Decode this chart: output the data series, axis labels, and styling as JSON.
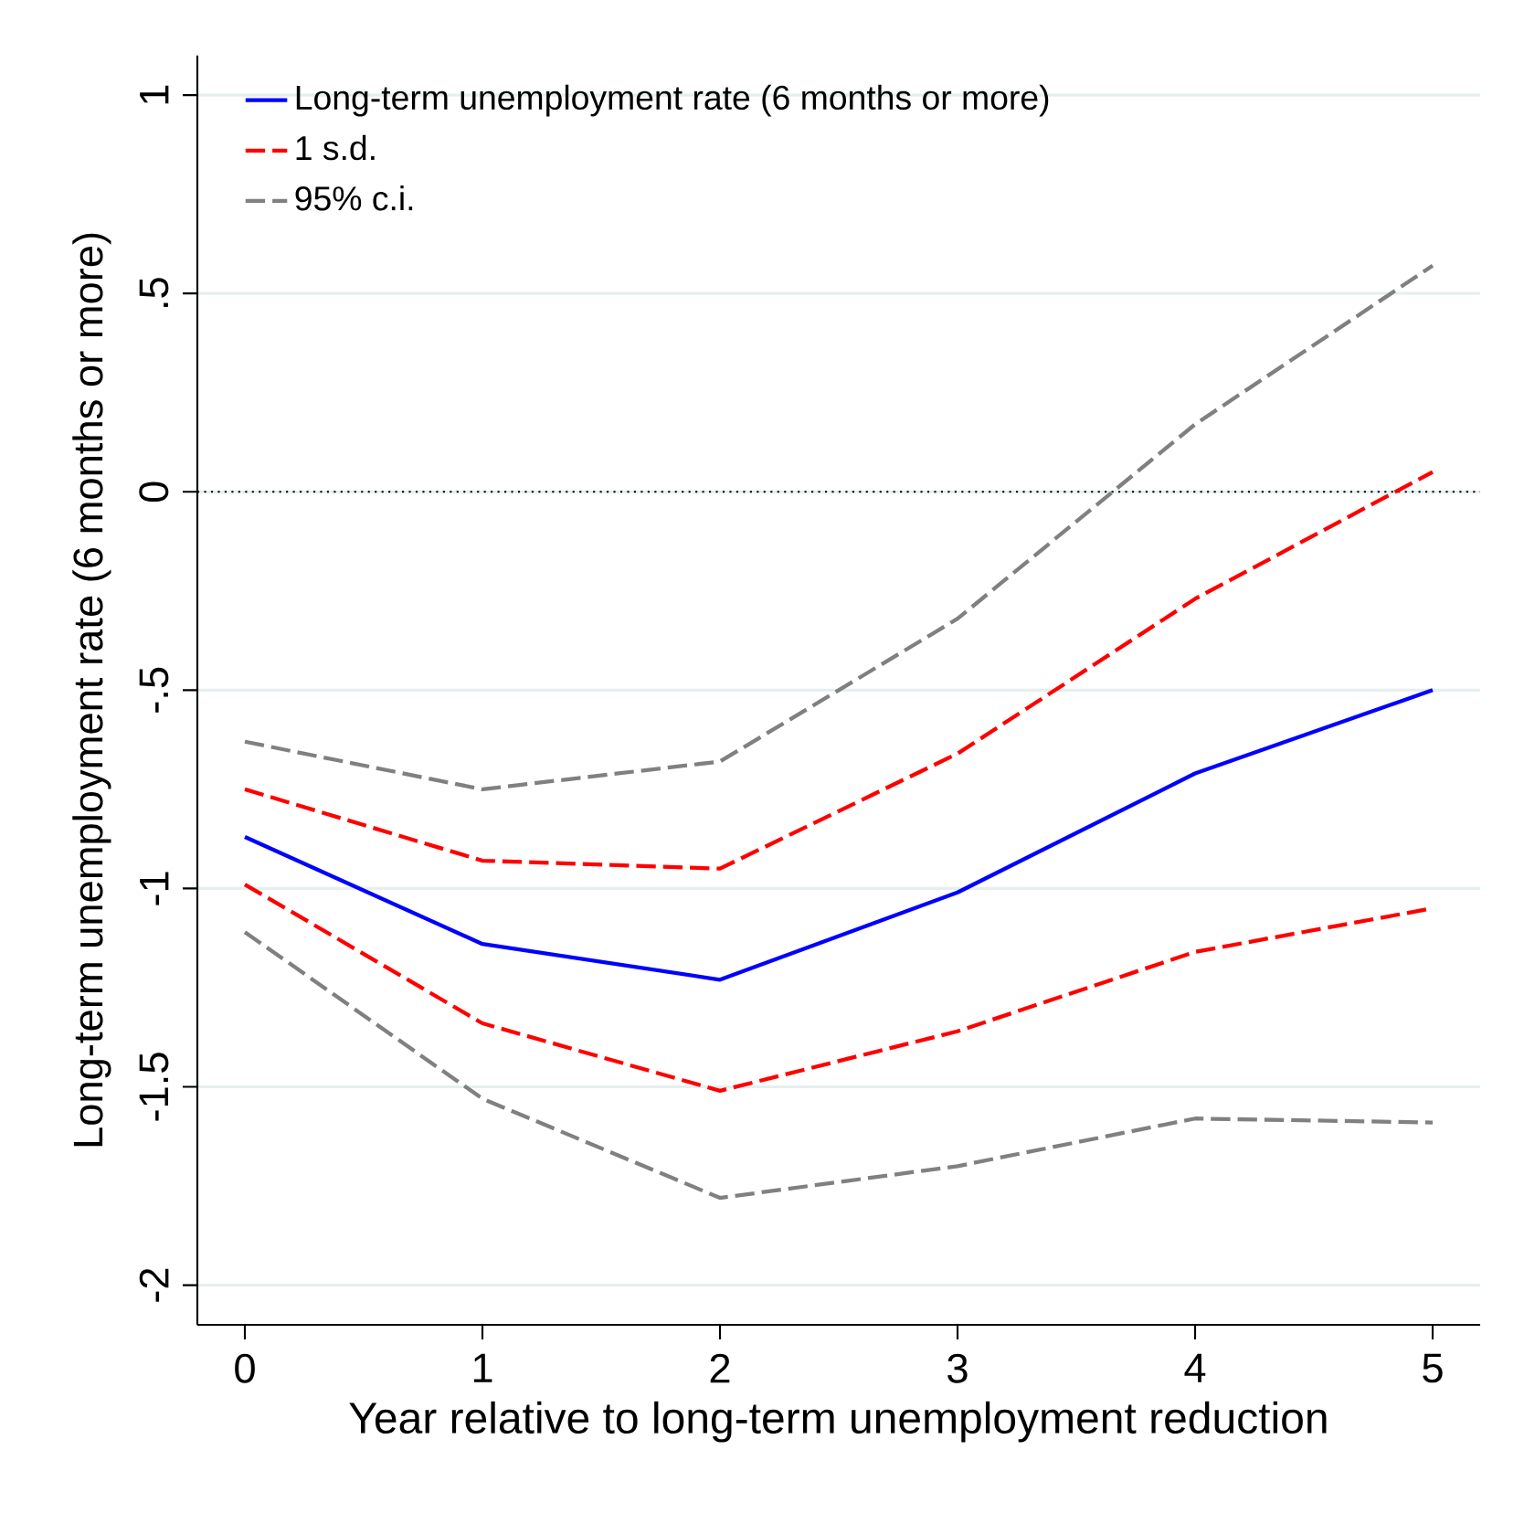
{
  "chart_data": {
    "type": "line",
    "xlabel": "Year relative to long-term unemployment reduction",
    "ylabel": "Long-term unemployment rate (6 months or more)",
    "x": [
      0,
      1,
      2,
      3,
      4,
      5
    ],
    "series": [
      {
        "name": "Long-term unemployment rate (6 months or more)",
        "color": "#0000ff",
        "line_style": "solid",
        "values": [
          -0.87,
          -1.14,
          -1.23,
          -1.01,
          -0.71,
          -0.5
        ]
      },
      {
        "name": "1 s.d.",
        "color": "#ff0000",
        "line_style": "dashed",
        "values": [
          -0.75,
          -0.93,
          -0.95,
          -0.66,
          -0.27,
          0.05
        ]
      },
      {
        "color": "#ff0000",
        "line_style": "dashed",
        "values": [
          -0.99,
          -1.34,
          -1.51,
          -1.36,
          -1.16,
          -1.05
        ]
      },
      {
        "name": "95% c.i.",
        "color": "#808080",
        "line_style": "dashed",
        "values": [
          -0.63,
          -0.75,
          -0.68,
          -0.32,
          0.17,
          0.57
        ]
      },
      {
        "color": "#808080",
        "line_style": "dashed",
        "values": [
          -1.11,
          -1.53,
          -1.78,
          -1.7,
          -1.58,
          -1.59
        ]
      }
    ],
    "xlim": [
      -0.2,
      5.2
    ],
    "ylim": [
      -2.1,
      1.1
    ],
    "xticks": [
      0,
      1,
      2,
      3,
      4,
      5
    ],
    "yticks": [
      {
        "value": -2,
        "label": "-2"
      },
      {
        "value": -1.5,
        "label": "-1.5"
      },
      {
        "value": -1,
        "label": "-1"
      },
      {
        "value": -0.5,
        "label": "-.5"
      },
      {
        "value": 0,
        "label": "0"
      },
      {
        "value": 0.5,
        "label": ".5"
      },
      {
        "value": 1,
        "label": "1"
      }
    ],
    "ref_lines": [
      {
        "axis": "y",
        "value": 0,
        "line_style": "dotted",
        "color": "#000000"
      }
    ],
    "grid": "y",
    "legend": "top left",
    "marker": "none"
  }
}
